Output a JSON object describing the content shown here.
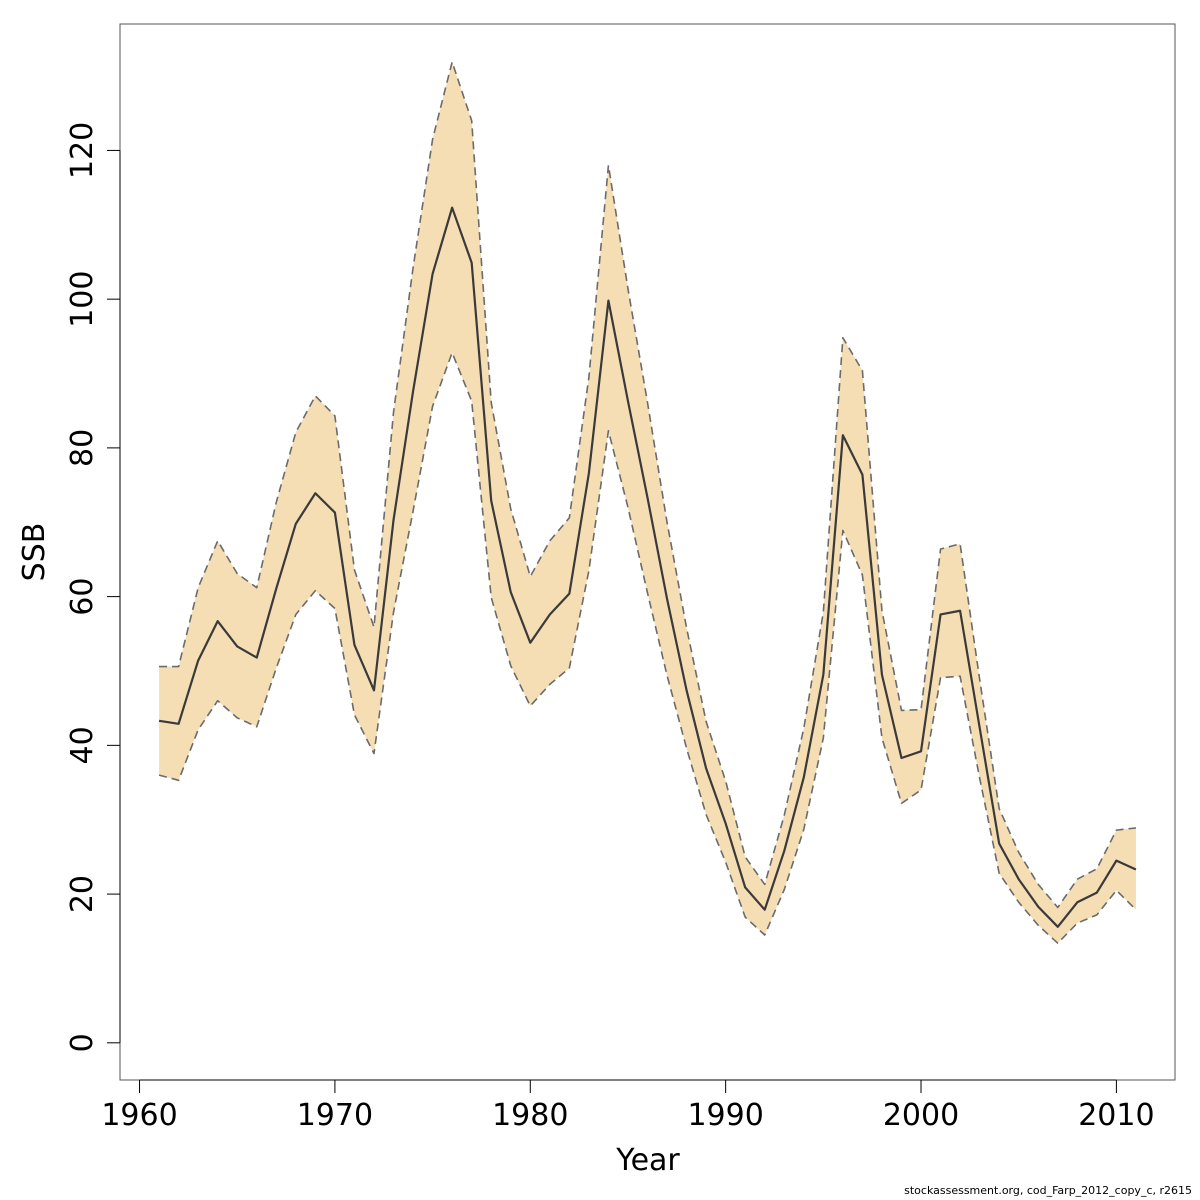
{
  "chart_data": {
    "type": "area",
    "xlabel": "Year",
    "ylabel": "SSB",
    "xlim": [
      1959,
      2013
    ],
    "ylim": [
      -5,
      137
    ],
    "x_ticks": [
      1960,
      1970,
      1980,
      1990,
      2000,
      2010
    ],
    "y_ticks": [
      0,
      20,
      40,
      60,
      80,
      100,
      120
    ],
    "x_tick_labels": [
      "1960",
      "1970",
      "1980",
      "1990",
      "2000",
      "2010"
    ],
    "y_tick_labels": [
      "0",
      "20",
      "40",
      "60",
      "80",
      "100",
      "120"
    ],
    "grid": false,
    "colors": {
      "band": "#f5deb3",
      "bound_line": "#6b6b6b",
      "estimate_line": "#3a3a3a",
      "frame": "#555555"
    },
    "x": [
      1961,
      1962,
      1963,
      1964,
      1965,
      1966,
      1967,
      1968,
      1969,
      1970,
      1971,
      1972,
      1973,
      1974,
      1975,
      1976,
      1977,
      1978,
      1979,
      1980,
      1981,
      1982,
      1983,
      1984,
      1985,
      1986,
      1987,
      1988,
      1989,
      1990,
      1991,
      1992,
      1993,
      1994,
      1995,
      1996,
      1997,
      1998,
      1999,
      2000,
      2001,
      2002,
      2003,
      2004,
      2005,
      2006,
      2007,
      2008,
      2009,
      2010,
      2011
    ],
    "series": [
      {
        "name": "Estimate",
        "values": [
          43.3,
          42.9,
          51.4,
          56.7,
          53.3,
          51.8,
          61.1,
          69.8,
          73.9,
          71.3,
          53.5,
          47.4,
          70.3,
          87.6,
          103.4,
          112.3,
          104.9,
          72.9,
          60.6,
          53.8,
          57.6,
          60.4,
          76.6,
          99.8,
          86.3,
          73.3,
          59.7,
          47.4,
          36.9,
          29.5,
          20.9,
          17.9,
          25.8,
          35.7,
          49.5,
          81.7,
          76.4,
          49.5,
          38.3,
          39.2,
          57.6,
          58.1,
          42.4,
          26.8,
          22.0,
          18.3,
          15.6,
          18.9,
          20.2,
          24.5,
          23.3
        ]
      },
      {
        "name": "Upper",
        "values": [
          50.6,
          50.6,
          61.2,
          67.5,
          63.1,
          61.2,
          72.7,
          82.1,
          87.0,
          84.3,
          63.6,
          55.9,
          84.8,
          104.2,
          121.5,
          131.9,
          124.0,
          86.1,
          71.8,
          62.7,
          67.5,
          70.6,
          89.5,
          118.0,
          101.4,
          86.1,
          70.0,
          55.8,
          43.2,
          35.2,
          25.0,
          21.3,
          30.6,
          42.3,
          57.9,
          94.8,
          90.4,
          58.1,
          44.7,
          44.8,
          66.4,
          67.1,
          48.9,
          31.5,
          25.6,
          21.3,
          18.2,
          22.0,
          23.4,
          28.6,
          28.9
        ]
      },
      {
        "name": "Lower",
        "values": [
          36.0,
          35.3,
          42.1,
          46.0,
          43.7,
          42.5,
          50.4,
          57.6,
          60.8,
          58.4,
          44.1,
          38.9,
          57.9,
          71.5,
          85.6,
          92.8,
          86.3,
          59.9,
          50.7,
          45.3,
          48.2,
          50.4,
          63.5,
          82.3,
          72.0,
          60.5,
          49.4,
          39.6,
          30.7,
          24.3,
          16.9,
          14.5,
          20.6,
          28.7,
          41.0,
          68.9,
          62.9,
          41.0,
          32.2,
          34.0,
          49.1,
          49.3,
          35.6,
          22.8,
          18.9,
          15.8,
          13.4,
          16.1,
          17.2,
          20.5,
          17.9
        ]
      }
    ]
  },
  "footer": "stockassessment.org, cod_Farp_2012_copy_c, r2615"
}
